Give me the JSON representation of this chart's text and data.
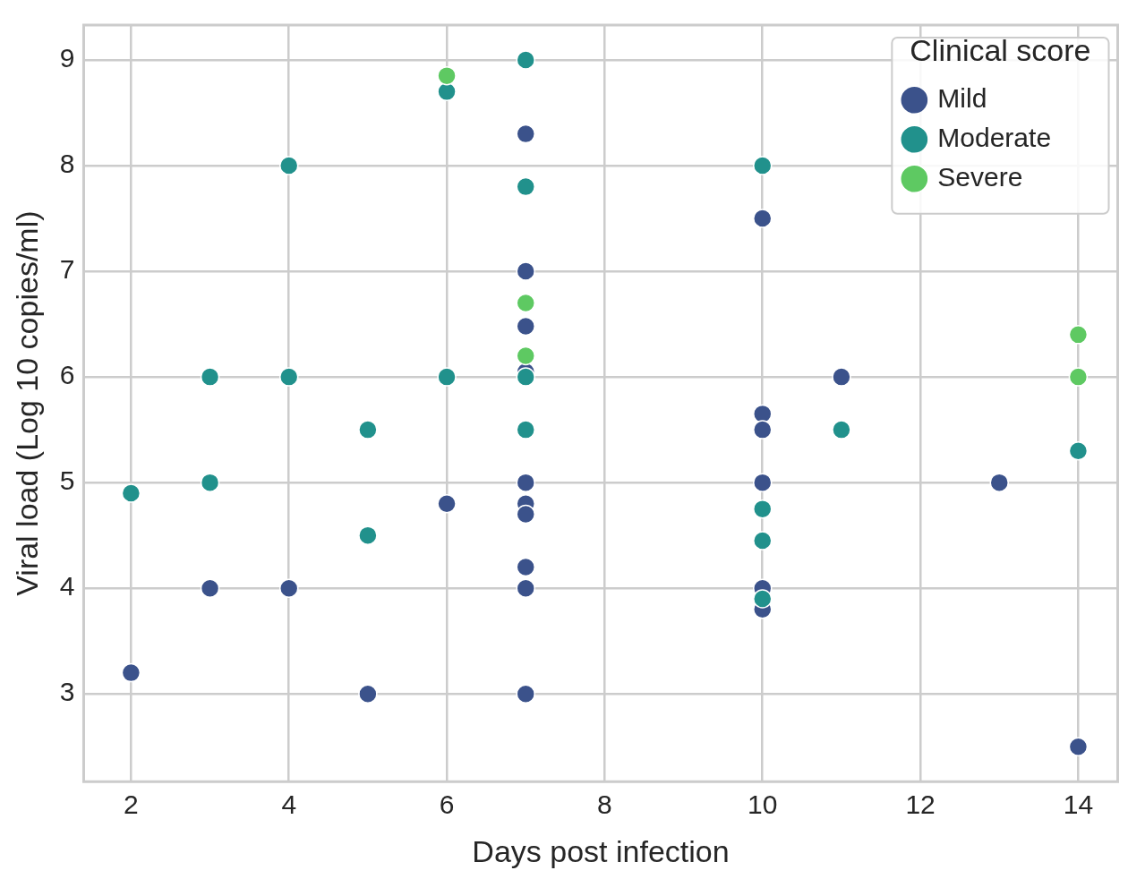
{
  "chart_data": {
    "type": "scatter",
    "xlabel": "Days post infection",
    "ylabel": "Viral load (Log 10 copies/ml)",
    "legend_title": "Clinical score",
    "xlim": [
      1.4,
      14.5
    ],
    "xticks": [
      2,
      4,
      6,
      8,
      10,
      12,
      14
    ],
    "ylim": [
      2.17,
      9.33
    ],
    "yticks": [
      3,
      4,
      5,
      6,
      7,
      8,
      9
    ],
    "grid": true,
    "legend": "top right",
    "marker": "circle",
    "series": [
      {
        "name": "Mild",
        "color": "#3b528b",
        "x": [
          2,
          3,
          4,
          5,
          6,
          7,
          7,
          7,
          7,
          7,
          7,
          7,
          7,
          7,
          7,
          10,
          10,
          10,
          10,
          10,
          10,
          11,
          13,
          14
        ],
        "values": [
          3.2,
          4,
          4,
          3,
          4.8,
          8.3,
          7,
          6.48,
          6.05,
          5,
          4.8,
          4.7,
          4.2,
          4,
          3,
          7.5,
          5.65,
          5.5,
          5,
          4,
          3.8,
          6,
          5,
          2.5
        ]
      },
      {
        "name": "Moderate",
        "color": "#21918c",
        "x": [
          2,
          3,
          3,
          4,
          4,
          5,
          5,
          6,
          6,
          7,
          7,
          7,
          7,
          10,
          10,
          10,
          10,
          11,
          14
        ],
        "values": [
          4.9,
          6,
          5,
          8,
          6,
          5.5,
          4.5,
          8.7,
          6,
          9,
          7.8,
          6,
          5.5,
          8,
          4.75,
          4.45,
          3.9,
          5.5,
          5.3
        ]
      },
      {
        "name": "Severe",
        "color": "#5ec962",
        "x": [
          6,
          7,
          7,
          14,
          14
        ],
        "values": [
          8.85,
          6.7,
          6.2,
          6.4,
          6
        ]
      }
    ]
  }
}
